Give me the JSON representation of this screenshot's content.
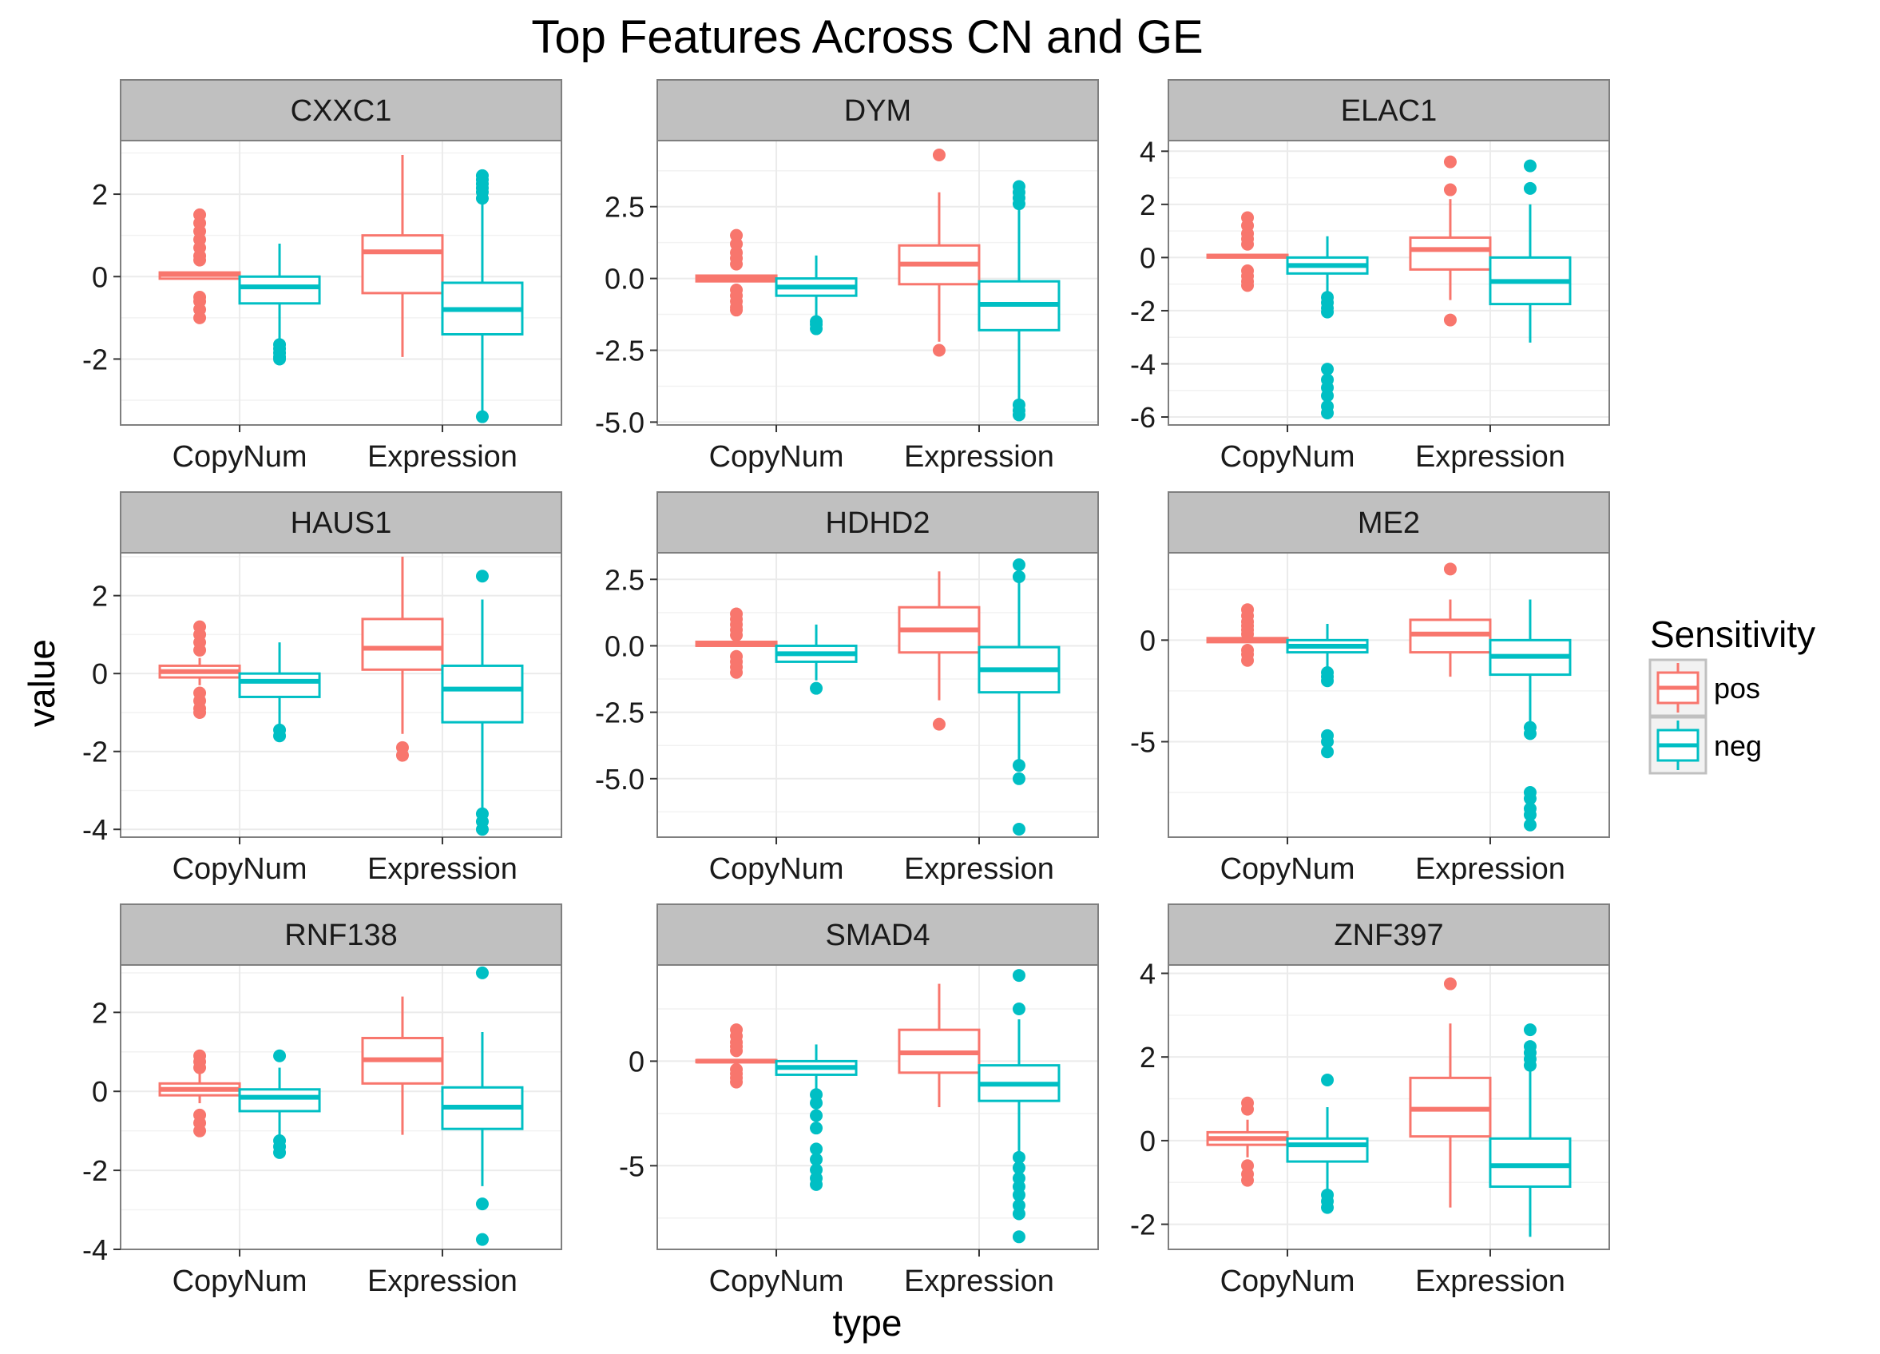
{
  "chart_data": {
    "type": "boxplot",
    "title": "Top Features Across CN and GE",
    "xlabel": "type",
    "ylabel": "value",
    "categories": [
      "CopyNum",
      "Expression"
    ],
    "legend": {
      "title": "Sensitivity",
      "position": "right",
      "entries": [
        {
          "name": "pos",
          "color": "#F8766D"
        },
        {
          "name": "neg",
          "color": "#00BFC4"
        }
      ]
    },
    "grid": true,
    "facets": [
      {
        "name": "CXXC1",
        "ylim": [
          -3.6,
          3.3
        ],
        "yticks": [
          -2,
          0,
          2
        ],
        "boxes": [
          {
            "type": "CopyNum",
            "group": "pos",
            "q1": -0.05,
            "median": 0.05,
            "q3": 0.1,
            "lower": -0.05,
            "upper": 0.1,
            "outliers": [
              1.5,
              1.3,
              1.1,
              0.9,
              0.7,
              0.5,
              0.4,
              -0.5,
              -0.6,
              -0.8,
              -1.0
            ]
          },
          {
            "type": "CopyNum",
            "group": "neg",
            "q1": -0.65,
            "median": -0.25,
            "q3": 0,
            "lower": -1.6,
            "upper": 0.8,
            "outliers": [
              -1.65,
              -1.75,
              -1.85,
              -1.95,
              -2.0
            ]
          },
          {
            "type": "Expression",
            "group": "pos",
            "q1": -0.4,
            "median": 0.6,
            "q3": 1.0,
            "lower": -1.95,
            "upper": 2.95,
            "outliers": []
          },
          {
            "type": "Expression",
            "group": "neg",
            "q1": -1.4,
            "median": -0.8,
            "q3": -0.15,
            "lower": -3.3,
            "upper": 1.8,
            "outliers": [
              2.45,
              2.35,
              2.25,
              2.15,
              2.05,
              1.9,
              -3.4
            ]
          }
        ]
      },
      {
        "name": "DYM",
        "ylim": [
          -5.1,
          4.8
        ],
        "yticks": [
          -5.0,
          -2.5,
          0.0,
          2.5
        ],
        "boxes": [
          {
            "type": "CopyNum",
            "group": "pos",
            "q1": -0.1,
            "median": 0.0,
            "q3": 0.1,
            "lower": -0.1,
            "upper": 0.1,
            "outliers": [
              1.5,
              1.2,
              0.9,
              0.7,
              0.5,
              -0.4,
              -0.6,
              -0.8,
              -1.0,
              -1.1
            ]
          },
          {
            "type": "CopyNum",
            "group": "neg",
            "q1": -0.6,
            "median": -0.3,
            "q3": 0.0,
            "lower": -1.5,
            "upper": 0.8,
            "outliers": [
              -1.5,
              -1.6,
              -1.75
            ]
          },
          {
            "type": "Expression",
            "group": "pos",
            "q1": -0.2,
            "median": 0.5,
            "q3": 1.15,
            "lower": -2.2,
            "upper": 3.0,
            "outliers": [
              4.3,
              -2.5
            ]
          },
          {
            "type": "Expression",
            "group": "neg",
            "q1": -1.8,
            "median": -0.9,
            "q3": -0.1,
            "lower": -4.3,
            "upper": 2.6,
            "outliers": [
              3.2,
              3.0,
              2.8,
              2.6,
              -4.4,
              -4.6,
              -4.75
            ]
          }
        ]
      },
      {
        "name": "ELAC1",
        "ylim": [
          -6.3,
          4.4
        ],
        "yticks": [
          -6,
          -4,
          -2,
          0,
          2,
          4
        ],
        "boxes": [
          {
            "type": "CopyNum",
            "group": "pos",
            "q1": 0.0,
            "median": 0.05,
            "q3": 0.1,
            "lower": 0.0,
            "upper": 0.1,
            "outliers": [
              1.5,
              1.2,
              0.9,
              0.7,
              0.5,
              -0.5,
              -0.7,
              -0.9,
              -1.05
            ]
          },
          {
            "type": "CopyNum",
            "group": "neg",
            "q1": -0.6,
            "median": -0.3,
            "q3": 0.0,
            "lower": -1.4,
            "upper": 0.8,
            "outliers": [
              -1.5,
              -1.7,
              -1.9,
              -2.05,
              -4.2,
              -4.6,
              -4.9,
              -5.2,
              -5.6,
              -5.85
            ]
          },
          {
            "type": "Expression",
            "group": "pos",
            "q1": -0.45,
            "median": 0.3,
            "q3": 0.75,
            "lower": -1.6,
            "upper": 2.2,
            "outliers": [
              3.6,
              2.55,
              -2.35
            ]
          },
          {
            "type": "Expression",
            "group": "neg",
            "q1": -1.75,
            "median": -0.9,
            "q3": 0.0,
            "lower": -3.2,
            "upper": 2.0,
            "outliers": [
              3.45,
              2.6
            ]
          }
        ]
      },
      {
        "name": "HAUS1",
        "ylim": [
          -4.2,
          3.1
        ],
        "yticks": [
          -4,
          -2,
          0,
          2
        ],
        "boxes": [
          {
            "type": "CopyNum",
            "group": "pos",
            "q1": -0.1,
            "median": 0.05,
            "q3": 0.2,
            "lower": -0.3,
            "upper": 0.4,
            "outliers": [
              1.2,
              1.0,
              0.8,
              0.6,
              -0.5,
              -0.7,
              -0.9,
              -1.0
            ]
          },
          {
            "type": "CopyNum",
            "group": "neg",
            "q1": -0.6,
            "median": -0.2,
            "q3": 0.0,
            "lower": -1.4,
            "upper": 0.8,
            "outliers": [
              -1.45,
              -1.6
            ]
          },
          {
            "type": "Expression",
            "group": "pos",
            "q1": 0.1,
            "median": 0.65,
            "q3": 1.4,
            "lower": -1.55,
            "upper": 3.0,
            "outliers": [
              -1.9,
              -2.1
            ]
          },
          {
            "type": "Expression",
            "group": "neg",
            "q1": -1.25,
            "median": -0.4,
            "q3": 0.2,
            "lower": -3.45,
            "upper": 1.9,
            "outliers": [
              2.5,
              -3.6,
              -3.8,
              -4.0
            ]
          }
        ]
      },
      {
        "name": "HDHD2",
        "ylim": [
          -7.2,
          3.5
        ],
        "yticks": [
          -5.0,
          -2.5,
          0.0,
          2.5
        ],
        "boxes": [
          {
            "type": "CopyNum",
            "group": "pos",
            "q1": 0.0,
            "median": 0.05,
            "q3": 0.15,
            "lower": 0.0,
            "upper": 0.15,
            "outliers": [
              1.2,
              1.0,
              0.8,
              0.6,
              0.4,
              -0.4,
              -0.6,
              -0.8,
              -1.0
            ]
          },
          {
            "type": "CopyNum",
            "group": "neg",
            "q1": -0.6,
            "median": -0.3,
            "q3": 0.0,
            "lower": -1.3,
            "upper": 0.8,
            "outliers": [
              -1.6
            ]
          },
          {
            "type": "Expression",
            "group": "pos",
            "q1": -0.25,
            "median": 0.6,
            "q3": 1.45,
            "lower": -2.05,
            "upper": 2.8,
            "outliers": [
              -2.95
            ]
          },
          {
            "type": "Expression",
            "group": "neg",
            "q1": -1.75,
            "median": -0.9,
            "q3": -0.05,
            "lower": -4.4,
            "upper": 2.5,
            "outliers": [
              3.05,
              2.6,
              -4.5,
              -5.0,
              -6.9
            ]
          }
        ]
      },
      {
        "name": "ME2",
        "ylim": [
          -9.7,
          4.3
        ],
        "yticks": [
          -5,
          0
        ],
        "boxes": [
          {
            "type": "CopyNum",
            "group": "pos",
            "q1": -0.1,
            "median": 0.0,
            "q3": 0.1,
            "lower": -0.1,
            "upper": 0.1,
            "outliers": [
              1.5,
              1.2,
              0.9,
              0.7,
              0.5,
              0.3,
              -0.5,
              -0.7,
              -1.0
            ]
          },
          {
            "type": "CopyNum",
            "group": "neg",
            "q1": -0.6,
            "median": -0.3,
            "q3": 0.0,
            "lower": -1.4,
            "upper": 0.8,
            "outliers": [
              -1.6,
              -1.8,
              -2.0,
              -4.7,
              -5.0,
              -5.5
            ]
          },
          {
            "type": "Expression",
            "group": "pos",
            "q1": -0.6,
            "median": 0.3,
            "q3": 1.0,
            "lower": -1.8,
            "upper": 2.0,
            "outliers": [
              3.5
            ]
          },
          {
            "type": "Expression",
            "group": "neg",
            "q1": -1.7,
            "median": -0.8,
            "q3": 0.0,
            "lower": -4.2,
            "upper": 2.0,
            "outliers": [
              -4.3,
              -4.6,
              -7.5,
              -7.8,
              -8.3,
              -8.6,
              -9.1
            ]
          }
        ]
      },
      {
        "name": "RNF138",
        "ylim": [
          -4.0,
          3.2
        ],
        "yticks": [
          -4,
          -2,
          0,
          2
        ],
        "boxes": [
          {
            "type": "CopyNum",
            "group": "pos",
            "q1": -0.1,
            "median": 0.05,
            "q3": 0.2,
            "lower": -0.3,
            "upper": 0.5,
            "outliers": [
              0.9,
              0.75,
              0.6,
              -0.6,
              -0.8,
              -1.0
            ]
          },
          {
            "type": "CopyNum",
            "group": "neg",
            "q1": -0.5,
            "median": -0.15,
            "q3": 0.05,
            "lower": -1.1,
            "upper": 0.6,
            "outliers": [
              0.9,
              -1.25,
              -1.4,
              -1.55
            ]
          },
          {
            "type": "Expression",
            "group": "pos",
            "q1": 0.2,
            "median": 0.8,
            "q3": 1.35,
            "lower": -1.1,
            "upper": 2.4,
            "outliers": []
          },
          {
            "type": "Expression",
            "group": "neg",
            "q1": -0.95,
            "median": -0.4,
            "q3": 0.1,
            "lower": -2.4,
            "upper": 1.5,
            "outliers": [
              3.0,
              -2.85,
              -3.75
            ]
          }
        ]
      },
      {
        "name": "SMAD4",
        "ylim": [
          -9.0,
          4.6
        ],
        "yticks": [
          -5,
          0
        ],
        "boxes": [
          {
            "type": "CopyNum",
            "group": "pos",
            "q1": -0.05,
            "median": 0.0,
            "q3": 0.05,
            "lower": -0.05,
            "upper": 0.05,
            "outliers": [
              1.5,
              1.2,
              0.9,
              0.7,
              0.5,
              -0.4,
              -0.6,
              -0.8,
              -1.0
            ]
          },
          {
            "type": "CopyNum",
            "group": "neg",
            "q1": -0.65,
            "median": -0.3,
            "q3": 0.0,
            "lower": -1.5,
            "upper": 0.8,
            "outliers": [
              -1.6,
              -2.0,
              -2.6,
              -3.2,
              -4.2,
              -4.7,
              -5.2,
              -5.6,
              -5.9
            ]
          },
          {
            "type": "Expression",
            "group": "pos",
            "q1": -0.55,
            "median": 0.4,
            "q3": 1.5,
            "lower": -2.2,
            "upper": 3.7,
            "outliers": []
          },
          {
            "type": "Expression",
            "group": "neg",
            "q1": -1.9,
            "median": -1.1,
            "q3": -0.2,
            "lower": -4.4,
            "upper": 2.0,
            "outliers": [
              4.1,
              2.5,
              -4.6,
              -5.1,
              -5.6,
              -6.0,
              -6.4,
              -6.9,
              -7.3,
              -8.4
            ]
          }
        ]
      },
      {
        "name": "ZNF397",
        "ylim": [
          -2.6,
          4.2
        ],
        "yticks": [
          -2,
          0,
          2,
          4
        ],
        "boxes": [
          {
            "type": "CopyNum",
            "group": "pos",
            "q1": -0.1,
            "median": 0.05,
            "q3": 0.2,
            "lower": -0.4,
            "upper": 0.5,
            "outliers": [
              0.9,
              0.75,
              -0.6,
              -0.8,
              -0.95
            ]
          },
          {
            "type": "CopyNum",
            "group": "neg",
            "q1": -0.5,
            "median": -0.1,
            "q3": 0.05,
            "lower": -1.2,
            "upper": 0.8,
            "outliers": [
              1.45,
              -1.3,
              -1.45,
              -1.6
            ]
          },
          {
            "type": "Expression",
            "group": "pos",
            "q1": 0.1,
            "median": 0.75,
            "q3": 1.5,
            "lower": -1.6,
            "upper": 2.8,
            "outliers": [
              3.75
            ]
          },
          {
            "type": "Expression",
            "group": "neg",
            "q1": -1.1,
            "median": -0.6,
            "q3": 0.05,
            "lower": -2.3,
            "upper": 1.75,
            "outliers": [
              2.65,
              2.25,
              2.1,
              1.95,
              1.8
            ]
          }
        ]
      }
    ]
  }
}
